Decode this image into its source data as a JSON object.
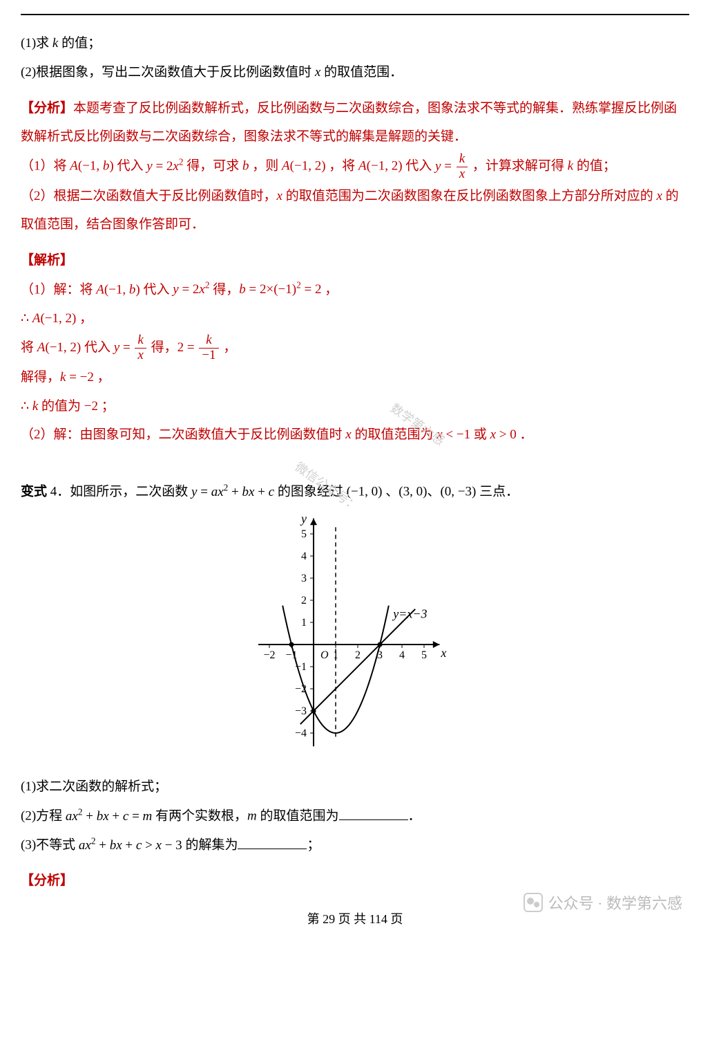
{
  "q1": "(1)求 ",
  "q1b": " 的值；",
  "q2": "(2)根据图象，写出二次函数值大于反比例函数值时 ",
  "q2b": " 的取值范围．",
  "analysis_label": "【分析】",
  "analysis_text1": "本题考查了反比例函数解析式，反比例函数与二次函数综合，图象法求不等式的解集．熟练掌握反比例函数解析式反比例函数与二次函数综合，图象法求不等式的解集是解题的关键．",
  "ana1_pre": "（1）将 ",
  "ana1_a": " 代入 ",
  "ana1_b": " 得，可求 ",
  "ana1_c": " ，则 ",
  "ana1_d": " ，将 ",
  "ana1_e": " 代入 ",
  "ana1_f": " ，计算求解可得 ",
  "ana1_g": " 的值；",
  "ana2": "（2）根据二次函数值大于反比例函数值时，",
  "ana2b": " 的取值范围为二次函数图象在反比例函数图象上方部分所对应的 ",
  "ana2c": " 的取值范围，结合图象作答即可．",
  "solution_label": "【解析】",
  "sol1_pre": "（1）解：将 ",
  "sol1_a": " 代入 ",
  "sol1_b": " 得，",
  "sol1_eq": "b = 2×(−1)² = 2",
  "sol1_comma": " ，",
  "therefore_a": "∴ ",
  "a_neg1_2": "A(−1, 2)",
  "sol1_c": " ，",
  "sol2_pre": "将 ",
  "sol2_a": " 代入 ",
  "sol2_b": " 得，",
  "sol2_eq_lhs": "2 = ",
  "sol2_comma": " ，",
  "solve_get": "解得，",
  "k_eq": "k = −2",
  "sol2_c": " ，",
  "therefore_k": "∴ ",
  "k_val_text": " 的值为 −2 ；",
  "sol3_pre": "（2）解：由图象可知，二次函数值大于反比例函数值时 ",
  "sol3_b": " 的取值范围为 ",
  "sol3_ans": "x < −1 或 x > 0",
  "sol3_period": " ．",
  "variant_label": "变式",
  "variant_num": " 4．",
  "variant_text": "如图所示，二次函数 ",
  "variant_text2": " 的图象经过 ",
  "pt1": "(−1, 0)",
  "pt2": "(3, 0)",
  "pt3": "(0, −3)",
  "variant_text3": " 三点．",
  "sep_dun": " 、",
  "sep_dun2": "、",
  "chart": {
    "xmin": -2,
    "xmax": 5,
    "ymin": -4,
    "ymax": 5,
    "xticks": [
      -2,
      -1,
      1,
      2,
      3,
      4,
      5
    ],
    "yticks": [
      -4,
      -3,
      -2,
      -1,
      1,
      2,
      3,
      4,
      5
    ],
    "line_label": "y=x−3",
    "xlabel": "x",
    "ylabel": "y",
    "origin": "O",
    "axis_color": "#000000",
    "curve_color": "#000000",
    "stroke_width": 2
  },
  "vq1": "(1)求二次函数的解析式；",
  "vq2_a": "(2)方程 ",
  "vq2_b": " 有两个实数根，",
  "vq2_c": " 的取值范围为",
  "vq2_period": "．",
  "vq3_a": "(3)不等式 ",
  "vq3_b": " 的解集为",
  "vq3_semi": "；",
  "analysis_label2": "【分析】",
  "footer_wm": "公众号 · 数学第六感",
  "pagenum_a": "第 ",
  "pagenum_b": "29",
  "pagenum_c": " 页 共 ",
  "pagenum_d": "114",
  "pagenum_e": " 页",
  "wm1": "数学第六感",
  "wm2": "微信公众号："
}
